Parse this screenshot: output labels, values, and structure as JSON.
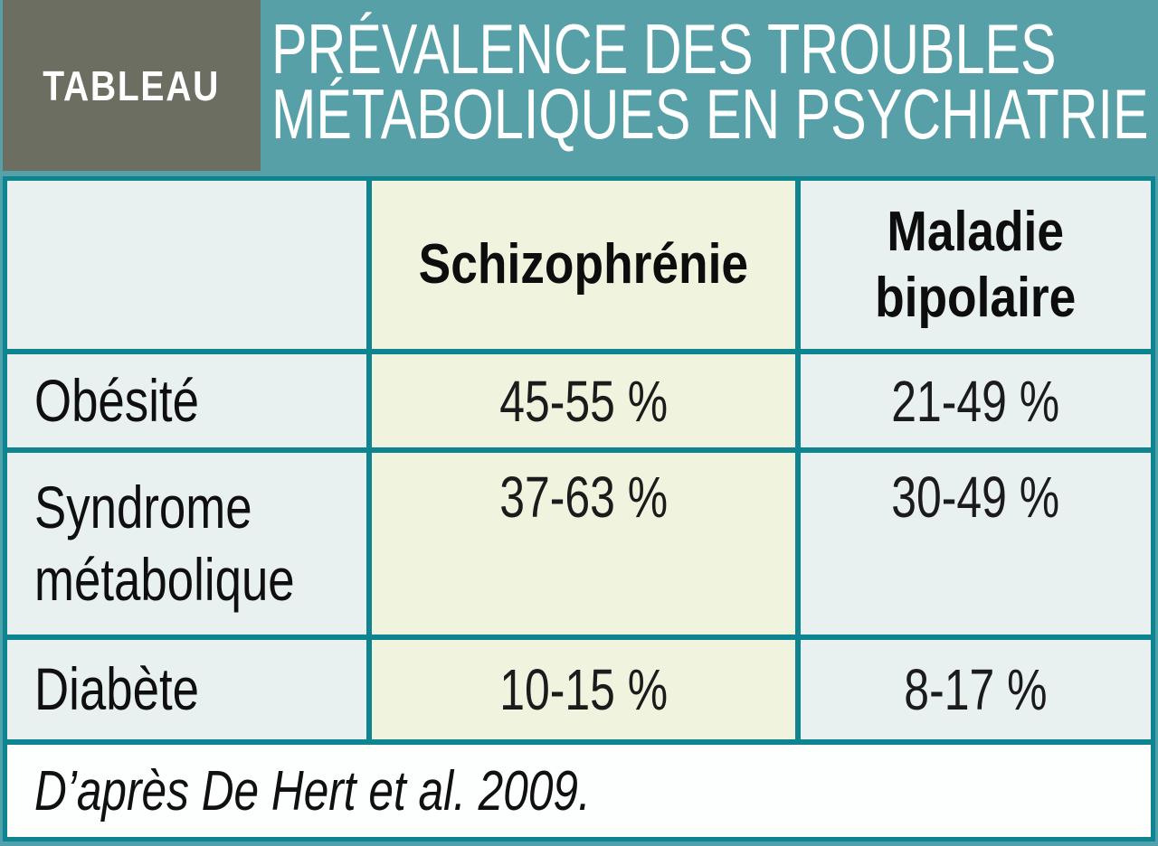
{
  "banner": {
    "tag": "TABLEAU",
    "title_line1": "PRÉVALENCE DES TROUBLES",
    "title_line2": "MÉTABOLIQUES EN PSYCHIATRIE"
  },
  "table": {
    "header": {
      "corner": "",
      "col2": "Schizophrénie",
      "col3_line1": "Maladie",
      "col3_line2": "bipolaire"
    },
    "rows": [
      {
        "label": "Obésité",
        "schizophrenie": "45-55 %",
        "bipolaire": "21-49 %"
      },
      {
        "label": "Syndrome métabolique",
        "schizophrenie": "37-63 %",
        "bipolaire": "30-49 %"
      },
      {
        "label": "Diabète",
        "schizophrenie": "10-15 %",
        "bipolaire": "8-17 %"
      }
    ],
    "footer": "D’après De Hert et al. 2009."
  },
  "colors": {
    "banner_teal": "#57A0A8",
    "tag_olive": "#6B6E61",
    "border_teal": "#0E8490",
    "cell_blue": "#E9F0F0",
    "cell_cream": "#F0F3DE",
    "footer_white": "#FDFEFE",
    "text_black": "#0f0f0f",
    "text_white": "#FFFFFF"
  },
  "chart_data": {
    "type": "table",
    "title": "Prévalence des troubles métaboliques en psychiatrie",
    "columns": [
      "",
      "Schizophrénie",
      "Maladie bipolaire"
    ],
    "rows": [
      [
        "Obésité",
        "45-55 %",
        "21-49 %"
      ],
      [
        "Syndrome métabolique",
        "37-63 %",
        "30-49 %"
      ],
      [
        "Diabète",
        "10-15 %",
        "8-17 %"
      ]
    ],
    "source": "D’après De Hert et al. 2009."
  }
}
